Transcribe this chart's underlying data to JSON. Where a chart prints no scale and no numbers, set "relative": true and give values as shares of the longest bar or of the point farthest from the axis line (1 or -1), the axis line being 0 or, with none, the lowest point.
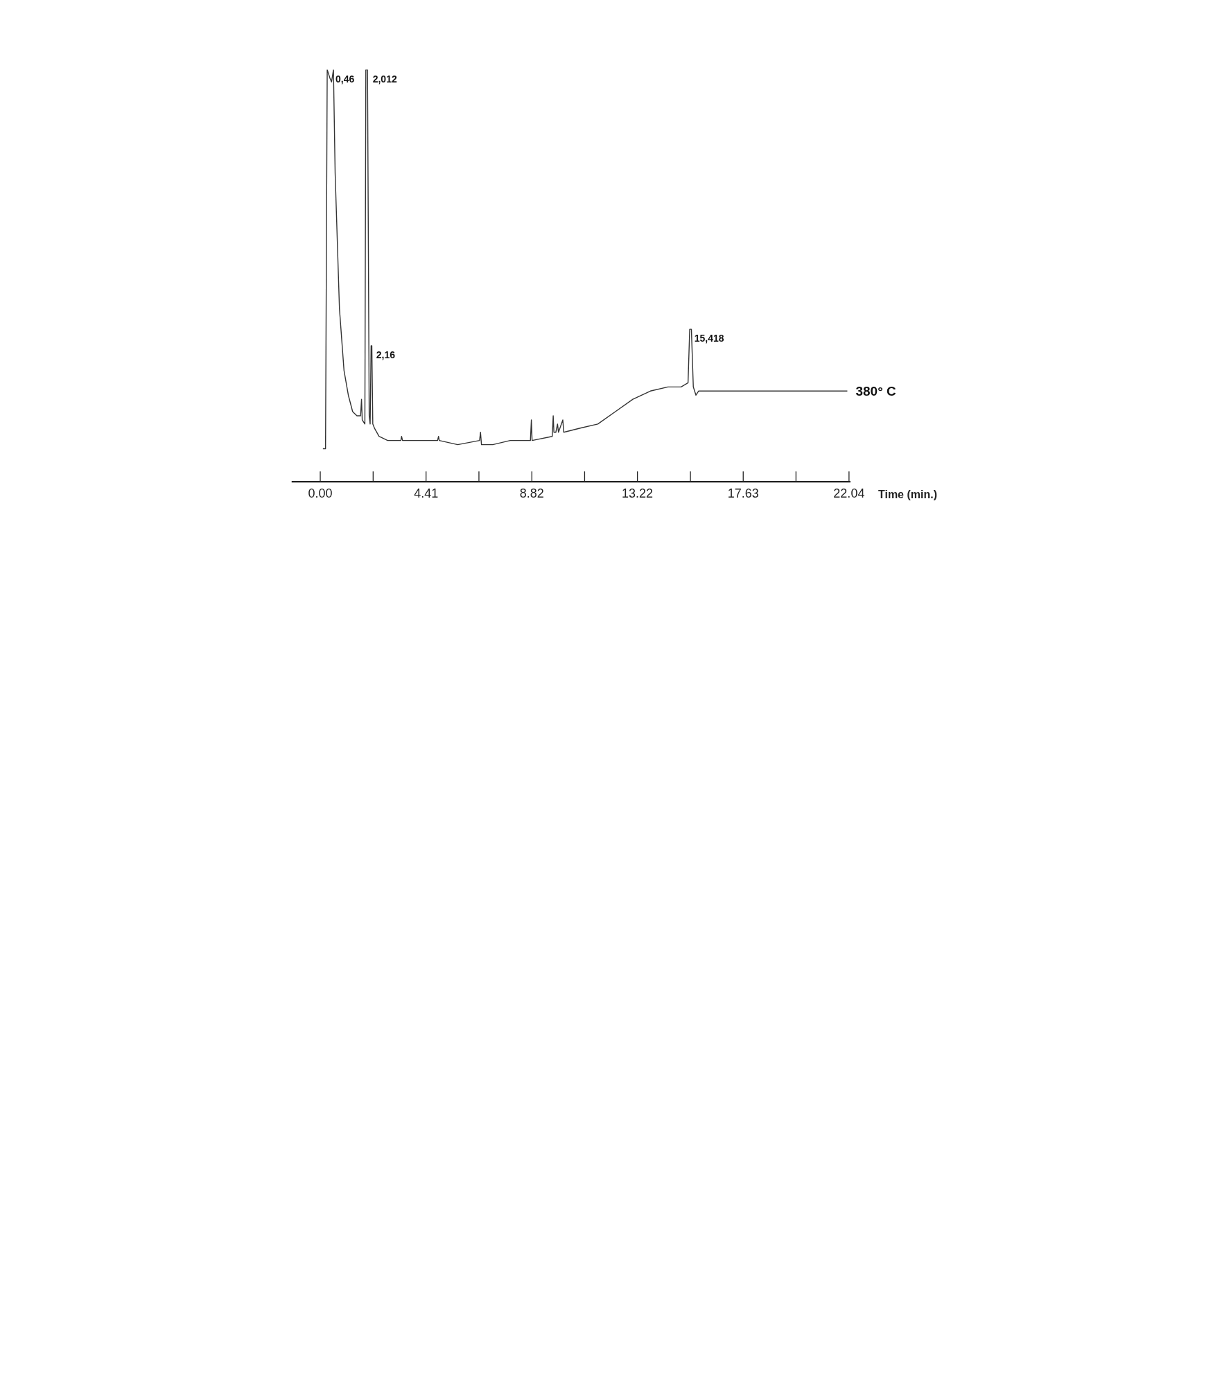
{
  "chart_data": {
    "type": "line",
    "relative": true,
    "xlabel": "Time (min.)",
    "color": "#333333",
    "x": [
      0.11,
      0.22,
      0.29,
      0.4,
      0.47,
      0.55,
      0.62,
      0.8,
      0.99,
      1.17,
      1.35,
      1.53,
      1.68,
      1.72,
      1.75,
      1.86,
      1.9,
      1.97,
      2.04,
      2.08,
      2.12,
      2.15,
      2.19,
      2.26,
      2.45,
      2.81,
      3.36,
      3.39,
      3.43,
      3.91,
      4.89,
      4.93,
      4.96,
      5.73,
      6.64,
      6.68,
      6.72,
      7.19,
      7.92,
      8.76,
      8.8,
      8.83,
      9.67,
      9.71,
      9.74,
      9.82,
      9.89,
      9.93,
      10.11,
      10.15,
      10.84,
      11.57,
      12.3,
      13.03,
      13.76,
      14.49,
      15.04,
      15.33,
      15.4,
      15.47,
      15.55,
      15.66,
      15.77,
      16.68,
      18.14,
      19.6,
      21.06,
      21.97
    ],
    "values": [
      0.08,
      0.08,
      1.0,
      0.98,
      0.97,
      1.0,
      0.75,
      0.42,
      0.27,
      0.21,
      0.17,
      0.16,
      0.16,
      0.2,
      0.15,
      0.14,
      1.0,
      1.0,
      0.16,
      0.14,
      0.33,
      0.33,
      0.14,
      0.13,
      0.11,
      0.1,
      0.1,
      0.11,
      0.1,
      0.1,
      0.1,
      0.11,
      0.1,
      0.09,
      0.1,
      0.12,
      0.09,
      0.09,
      0.1,
      0.1,
      0.15,
      0.1,
      0.11,
      0.16,
      0.12,
      0.12,
      0.14,
      0.12,
      0.15,
      0.12,
      0.13,
      0.14,
      0.17,
      0.2,
      0.22,
      0.23,
      0.23,
      0.24,
      0.37,
      0.37,
      0.23,
      0.21,
      0.22,
      0.22,
      0.22,
      0.22,
      0.22,
      0.22
    ],
    "xlim": [
      -1.2,
      22.1
    ],
    "xticks": [
      {
        "value": 0,
        "label": "0.00"
      },
      {
        "value": 2.204,
        "label": null
      },
      4.41,
      {
        "value": 6.614,
        "label": null
      },
      8.82,
      {
        "value": 11.02,
        "label": null
      },
      13.22,
      {
        "value": 15.43,
        "label": null
      },
      17.63,
      {
        "value": 19.83,
        "label": null
      },
      22.04
    ],
    "annotations": [
      {
        "text": "0,46",
        "x": 0.46,
        "y": 1.0
      },
      {
        "text": "2,012",
        "x": 2.012,
        "y": 1.0
      },
      {
        "text": "2,16",
        "x": 2.16,
        "y": 0.33
      },
      {
        "text": "15,418",
        "x": 15.418,
        "y": 0.37
      },
      {
        "text": "380° C",
        "x": 21.97,
        "y": 0.22
      }
    ],
    "grid": false,
    "marker": "none",
    "line_style": "solid"
  }
}
